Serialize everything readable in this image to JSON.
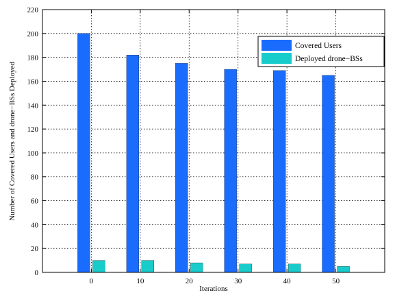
{
  "chart_data": {
    "type": "bar",
    "xlabel": "Iterations",
    "ylabel": "Number of Covered Users and drone−BSs Deployed",
    "categories": [
      "0",
      "10",
      "20",
      "30",
      "40",
      "50"
    ],
    "series": [
      {
        "name": "Covered Users",
        "values": [
          200,
          182,
          175,
          170,
          169,
          165
        ],
        "color": "#1a6cff"
      },
      {
        "name": "Deployed drone−BSs",
        "values": [
          10,
          10,
          8,
          7,
          7,
          5
        ],
        "color": "#19cccc"
      }
    ],
    "ylim": [
      0,
      220
    ],
    "yticks": [
      0,
      20,
      40,
      60,
      80,
      100,
      120,
      140,
      160,
      180,
      200,
      220
    ],
    "grid": true,
    "grid_style": "dotted",
    "legend_position": "top-right"
  }
}
